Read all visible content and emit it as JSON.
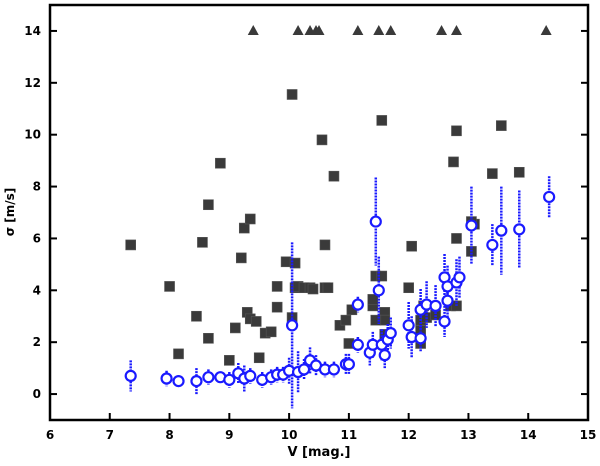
{
  "chart_data": {
    "type": "scatter",
    "title": "",
    "xlabel": "V [mag.]",
    "ylabel": "σ [m/s]",
    "xlim": [
      6,
      15
    ],
    "ylim": [
      -1,
      15
    ],
    "xticks": [
      6,
      7,
      8,
      9,
      10,
      11,
      12,
      13,
      14,
      15
    ],
    "yticks": [
      0,
      2,
      4,
      6,
      8,
      10,
      12,
      14
    ],
    "grid": false,
    "colors": {
      "circles": "#1a1aff",
      "squares": "#3a3a3a",
      "triangles": "#3a3a3a"
    },
    "series": [
      {
        "marker": "square",
        "points": [
          [
            7.35,
            5.75
          ],
          [
            8.0,
            4.15
          ],
          [
            8.15,
            1.55
          ],
          [
            8.45,
            3.0
          ],
          [
            8.55,
            5.85
          ],
          [
            8.65,
            7.3
          ],
          [
            8.65,
            2.15
          ],
          [
            8.85,
            8.9
          ],
          [
            9.0,
            1.3
          ],
          [
            9.1,
            2.55
          ],
          [
            9.2,
            5.25
          ],
          [
            9.25,
            6.4
          ],
          [
            9.35,
            6.75
          ],
          [
            9.3,
            3.15
          ],
          [
            9.35,
            2.9
          ],
          [
            9.45,
            2.8
          ],
          [
            9.5,
            1.4
          ],
          [
            9.6,
            2.35
          ],
          [
            9.7,
            2.4
          ],
          [
            9.8,
            3.35
          ],
          [
            9.8,
            4.15
          ],
          [
            9.95,
            5.1
          ],
          [
            10.05,
            11.55
          ],
          [
            10.05,
            2.95
          ],
          [
            10.1,
            4.1
          ],
          [
            10.15,
            4.15
          ],
          [
            10.25,
            4.1
          ],
          [
            10.35,
            4.1
          ],
          [
            10.6,
            4.1
          ],
          [
            10.1,
            5.05
          ],
          [
            10.4,
            4.05
          ],
          [
            10.55,
            9.8
          ],
          [
            10.6,
            5.75
          ],
          [
            10.65,
            4.1
          ],
          [
            10.75,
            8.4
          ],
          [
            10.85,
            2.65
          ],
          [
            10.95,
            2.85
          ],
          [
            11.05,
            3.25
          ],
          [
            11.0,
            1.95
          ],
          [
            11.55,
            10.55
          ],
          [
            11.45,
            4.55
          ],
          [
            11.55,
            4.55
          ],
          [
            11.4,
            3.4
          ],
          [
            11.4,
            3.65
          ],
          [
            11.6,
            3.15
          ],
          [
            11.6,
            2.85
          ],
          [
            11.45,
            2.85
          ],
          [
            11.6,
            2.3
          ],
          [
            12.05,
            5.7
          ],
          [
            12.0,
            4.1
          ],
          [
            12.2,
            2.85
          ],
          [
            12.2,
            2.45
          ],
          [
            12.3,
            2.95
          ],
          [
            12.45,
            3.05
          ],
          [
            12.25,
            3.4
          ],
          [
            12.2,
            1.95
          ],
          [
            12.75,
            8.95
          ],
          [
            12.8,
            10.15
          ],
          [
            12.7,
            3.4
          ],
          [
            12.8,
            3.4
          ],
          [
            12.8,
            6.0
          ],
          [
            13.05,
            5.5
          ],
          [
            13.1,
            6.55
          ],
          [
            13.05,
            6.65
          ],
          [
            13.4,
            8.5
          ],
          [
            13.55,
            10.35
          ],
          [
            13.85,
            8.55
          ]
        ]
      },
      {
        "marker": "triangle",
        "points": [
          [
            9.4,
            14
          ],
          [
            10.15,
            14
          ],
          [
            10.35,
            14
          ],
          [
            10.45,
            14
          ],
          [
            10.5,
            14
          ],
          [
            11.15,
            14
          ],
          [
            11.5,
            14
          ],
          [
            11.7,
            14
          ],
          [
            12.55,
            14
          ],
          [
            12.8,
            14
          ],
          [
            14.3,
            14
          ]
        ]
      },
      {
        "marker": "circle-errorbar",
        "points": [
          [
            7.35,
            0.7,
            0.6
          ],
          [
            7.95,
            0.6,
            0.3
          ],
          [
            8.15,
            0.5,
            0.2
          ],
          [
            8.45,
            0.5,
            0.5
          ],
          [
            8.65,
            0.65,
            0.3
          ],
          [
            8.85,
            0.65,
            0.2
          ],
          [
            9.0,
            0.55,
            0.3
          ],
          [
            9.15,
            0.8,
            0.4
          ],
          [
            9.25,
            0.6,
            0.5
          ],
          [
            9.35,
            0.7,
            0.3
          ],
          [
            9.55,
            0.55,
            0.3
          ],
          [
            9.7,
            0.65,
            0.3
          ],
          [
            9.8,
            0.75,
            0.3
          ],
          [
            9.9,
            0.75,
            0.3
          ],
          [
            10.0,
            0.9,
            0.5
          ],
          [
            10.05,
            2.65,
            3.2
          ],
          [
            10.15,
            0.85,
            0.8
          ],
          [
            10.25,
            0.95,
            0.4
          ],
          [
            10.35,
            1.3,
            0.5
          ],
          [
            10.45,
            1.1,
            0.4
          ],
          [
            10.6,
            0.95,
            0.3
          ],
          [
            10.75,
            0.95,
            0.3
          ],
          [
            10.95,
            1.15,
            0.4
          ],
          [
            11.0,
            1.15,
            0.4
          ],
          [
            11.15,
            1.9,
            0.3
          ],
          [
            11.15,
            3.45,
            0.3
          ],
          [
            11.45,
            6.65,
            1.7
          ],
          [
            11.5,
            4.0,
            1.3
          ],
          [
            11.35,
            1.6,
            0.5
          ],
          [
            11.4,
            1.9,
            0.5
          ],
          [
            11.55,
            1.9,
            0.6
          ],
          [
            11.65,
            2.1,
            0.6
          ],
          [
            11.7,
            2.35,
            0.6
          ],
          [
            11.6,
            1.5,
            0.5
          ],
          [
            12.0,
            2.65,
            0.9
          ],
          [
            12.05,
            2.2,
            0.8
          ],
          [
            12.2,
            2.15,
            0.5
          ],
          [
            12.2,
            3.25,
            0.8
          ],
          [
            12.3,
            3.45,
            0.9
          ],
          [
            12.45,
            3.4,
            0.8
          ],
          [
            12.6,
            4.5,
            0.9
          ],
          [
            12.65,
            4.15,
            0.8
          ],
          [
            12.65,
            3.6,
            0.7
          ],
          [
            12.6,
            2.8,
            0.6
          ],
          [
            12.8,
            4.3,
            0.9
          ],
          [
            12.85,
            4.5,
            0.8
          ],
          [
            13.05,
            6.5,
            1.5
          ],
          [
            13.4,
            5.75,
            0.8
          ],
          [
            13.55,
            6.3,
            1.7
          ],
          [
            13.85,
            6.35,
            1.5
          ],
          [
            14.35,
            7.6,
            0.8
          ]
        ]
      }
    ]
  }
}
